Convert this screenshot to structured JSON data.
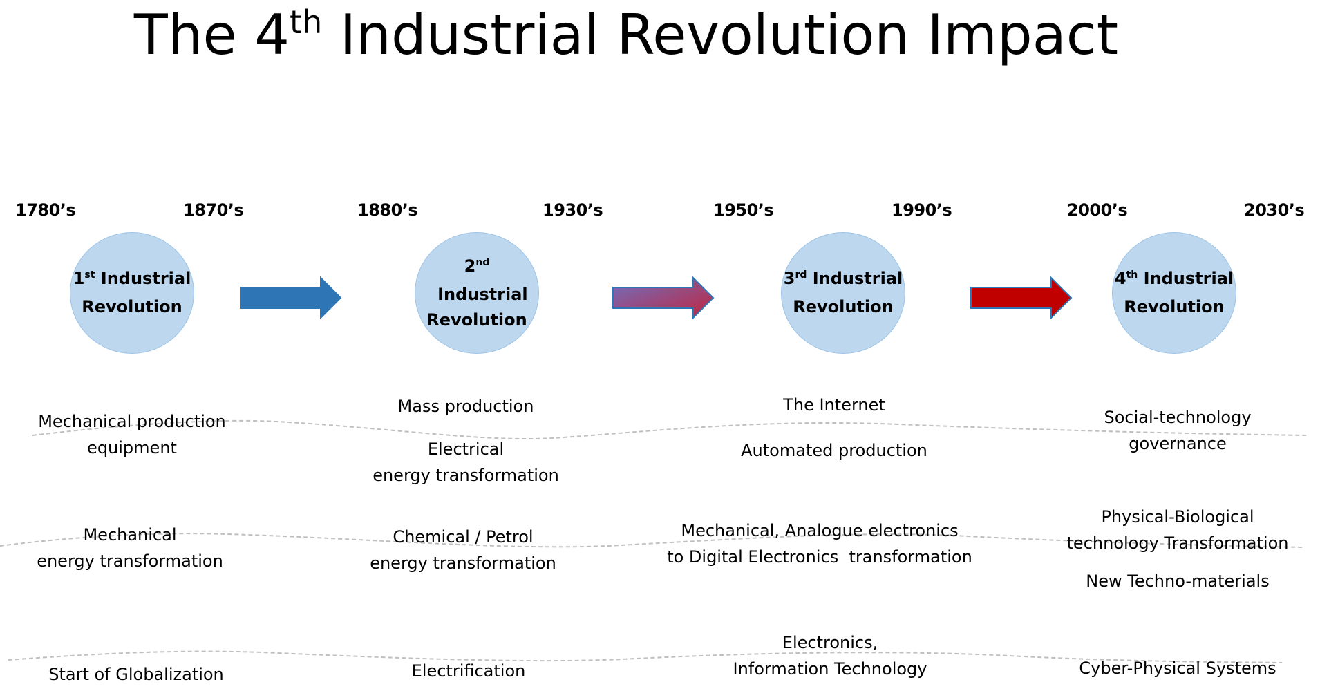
{
  "title": {
    "prefix": "The 4",
    "sup": "th",
    "suffix": " Industrial Revolution Impact"
  },
  "years": [
    "1780’s",
    "1870’s",
    "1880’s",
    "1930’s",
    "1950’s",
    "1990’s",
    "2000’s",
    "2030’s"
  ],
  "revolutions": [
    {
      "num": "1",
      "sup": "st",
      "line1": " Industrial",
      "line2": "Revolution"
    },
    {
      "num": "2",
      "sup": "nd",
      "line1": "  Industrial",
      "line2": "Revolution"
    },
    {
      "num": "3",
      "sup": "rd",
      "line1": " Industrial",
      "line2": "Revolution"
    },
    {
      "num": "4",
      "sup": "th",
      "line1": " Industrial",
      "line2": "Revolution"
    }
  ],
  "colors": {
    "circle_fill": "#bdd7ee",
    "arrow1": "#2e75b6",
    "arrow2_start": "#6f6fbf",
    "arrow2_end": "#c0263f",
    "arrow3": "#c00000"
  },
  "impacts": {
    "row1": [
      {
        "l1": "Mechanical production",
        "l2": "equipment"
      },
      {
        "l1": "Mass production",
        "l2": "Electrical",
        "l3": "energy transformation"
      },
      {
        "l1": "The Internet",
        "l2": "Automated production"
      },
      {
        "l1": "Social-technology",
        "l2": "governance"
      }
    ],
    "row2": [
      {
        "l1": "Mechanical",
        "l2": "energy transformation"
      },
      {
        "l1": "Chemical / Petrol",
        "l2": "energy transformation"
      },
      {
        "l1": "Mechanical, Analogue electronics",
        "l2": "to Digital Electronics  transformation"
      },
      {
        "l1": "Physical-Biological",
        "l2": "technology Transformation",
        "l3": "New Techno-materials"
      }
    ],
    "row3": [
      {
        "l1": "Start of Globalization"
      },
      {
        "l1": "Electrification"
      },
      {
        "l1": "Electronics,",
        "l2": "Information Technology"
      },
      {
        "l1": "Cyber-Physical Systems"
      }
    ]
  }
}
